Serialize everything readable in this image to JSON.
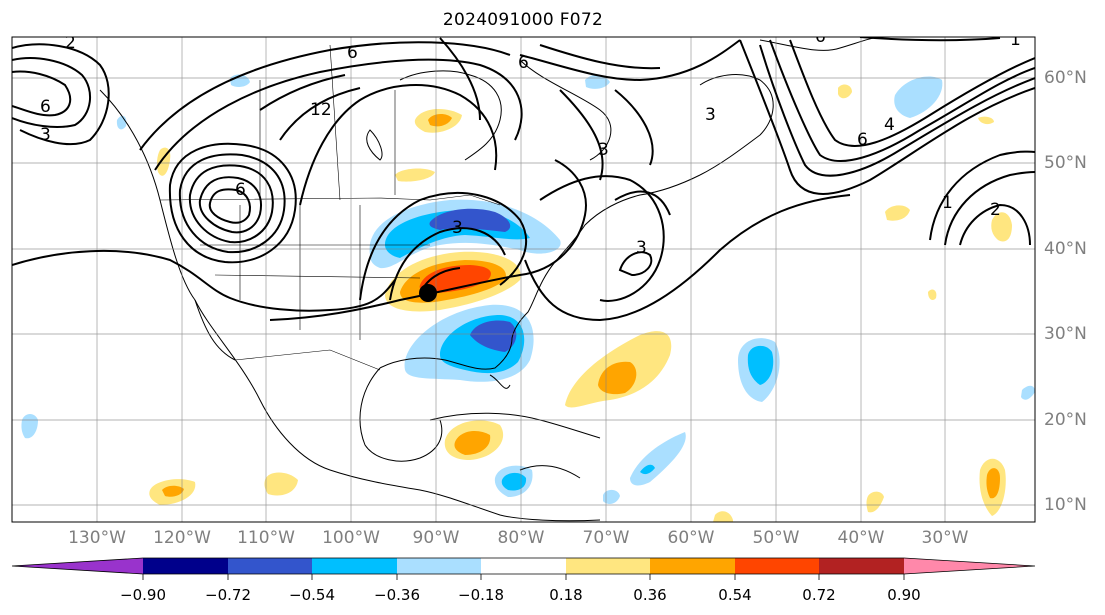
{
  "title": "2024091000 F072",
  "lon_labels": [
    "130°W",
    "120°W",
    "110°W",
    "100°W",
    "90°W",
    "80°W",
    "70°W",
    "60°W",
    "50°W",
    "40°W",
    "30°W"
  ],
  "lat_labels": [
    "60°N",
    "50°N",
    "40°N",
    "30°N",
    "20°N",
    "10°N"
  ],
  "colorbar": {
    "ticks": [
      "−0.90",
      "−0.72",
      "−0.54",
      "−0.36",
      "−0.18",
      "0.18",
      "0.36",
      "0.54",
      "0.72",
      "0.90"
    ],
    "colors": [
      "#9933cc",
      "#00008b",
      "#3355cc",
      "#00bfff",
      "#aadfff",
      "#ffffff",
      "#ffe680",
      "#ffa500",
      "#ff4500",
      "#b22222",
      "#ff88aa"
    ]
  },
  "contour_labels": [
    "6",
    "12",
    "3",
    "6",
    "6",
    "3",
    "3",
    "6",
    "1",
    "2",
    "6",
    "3",
    "4",
    "3",
    "6",
    "2",
    "1"
  ],
  "marker": "storm-center-dot",
  "colors": {
    "blue_light": "#aadfff",
    "blue_mid": "#00bfff",
    "blue_dark": "#3355cc",
    "yellow": "#ffe680",
    "orange": "#ffa500",
    "red": "#ff4500"
  }
}
